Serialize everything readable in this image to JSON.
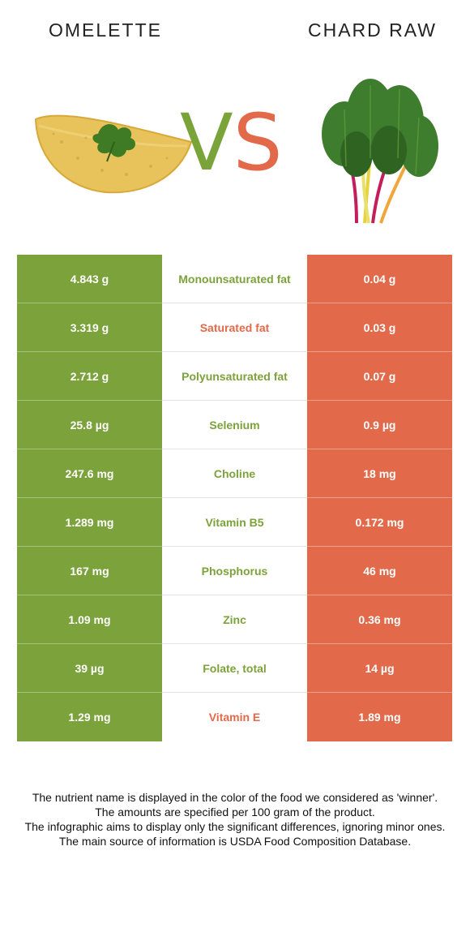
{
  "header": {
    "left_food": "OMELETTE",
    "right_food": "CHARD RAW",
    "vs_v": "V",
    "vs_s": "S"
  },
  "colors": {
    "left_food": "#7ba23b",
    "right_food": "#e26a4b"
  },
  "rows": [
    {
      "left": "4.843 g",
      "nutrient": "Monounsaturated fat",
      "right": "0.04 g",
      "winner": "left"
    },
    {
      "left": "3.319 g",
      "nutrient": "Saturated fat",
      "right": "0.03 g",
      "winner": "right"
    },
    {
      "left": "2.712 g",
      "nutrient": "Polyunsaturated fat",
      "right": "0.07 g",
      "winner": "left"
    },
    {
      "left": "25.8 µg",
      "nutrient": "Selenium",
      "right": "0.9 µg",
      "winner": "left"
    },
    {
      "left": "247.6 mg",
      "nutrient": "Choline",
      "right": "18 mg",
      "winner": "left"
    },
    {
      "left": "1.289 mg",
      "nutrient": "Vitamin B5",
      "right": "0.172 mg",
      "winner": "left"
    },
    {
      "left": "167 mg",
      "nutrient": "Phosphorus",
      "right": "46 mg",
      "winner": "left"
    },
    {
      "left": "1.09 mg",
      "nutrient": "Zinc",
      "right": "0.36 mg",
      "winner": "left"
    },
    {
      "left": "39 µg",
      "nutrient": "Folate, total",
      "right": "14 µg",
      "winner": "left"
    },
    {
      "left": "1.29 mg",
      "nutrient": "Vitamin E",
      "right": "1.89 mg",
      "winner": "right"
    }
  ],
  "footer": {
    "line1": "The nutrient name is displayed in the color of the food we considered as 'winner'.",
    "line2": "The amounts are specified per 100 gram of the product.",
    "line3": "The infographic aims to display only the significant differences, ignoring minor ones.",
    "line4": "The main source of information is USDA Food Composition Database."
  }
}
